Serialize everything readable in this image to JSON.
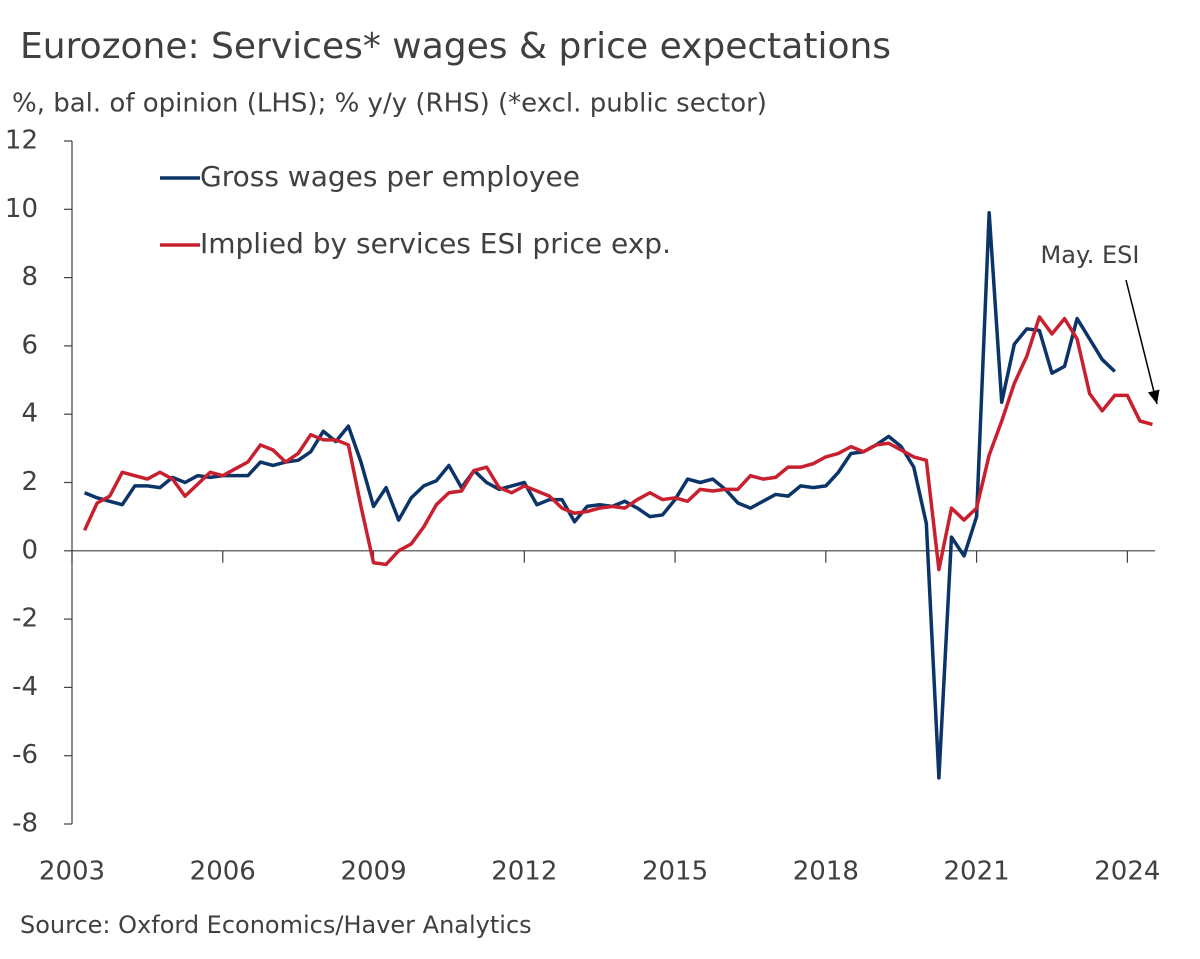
{
  "chart_data": {
    "type": "line",
    "title": "Eurozone: Services* wages & price expectations",
    "subtitle": "%, bal. of opinion (LHS); % y/y (RHS) (*excl. public sector)",
    "source": "Source: Oxford Economics/Haver Analytics",
    "annotation": "May. ESI",
    "xlim": [
      2003,
      2024.55
    ],
    "xticks": [
      2003,
      2006,
      2009,
      2012,
      2015,
      2018,
      2021,
      2024
    ],
    "ylim": [
      -8,
      12
    ],
    "yticks": [
      -8,
      -6,
      -4,
      -2,
      0,
      2,
      4,
      6,
      8,
      10,
      12
    ],
    "series": [
      {
        "name": "Gross wages per employee",
        "color": "#0b3469",
        "x": [
          2003.25,
          2003.5,
          2003.75,
          2004,
          2004.25,
          2004.5,
          2004.75,
          2005,
          2005.25,
          2005.5,
          2005.75,
          2006,
          2006.25,
          2006.5,
          2006.75,
          2007,
          2007.25,
          2007.5,
          2007.75,
          2008,
          2008.25,
          2008.5,
          2008.75,
          2009,
          2009.25,
          2009.5,
          2009.75,
          2010,
          2010.25,
          2010.5,
          2010.75,
          2011,
          2011.25,
          2011.5,
          2011.75,
          2012,
          2012.25,
          2012.5,
          2012.75,
          2013,
          2013.25,
          2013.5,
          2013.75,
          2014,
          2014.25,
          2014.5,
          2014.75,
          2015,
          2015.25,
          2015.5,
          2015.75,
          2016,
          2016.25,
          2016.5,
          2016.75,
          2017,
          2017.25,
          2017.5,
          2017.75,
          2018,
          2018.25,
          2018.5,
          2018.75,
          2019,
          2019.25,
          2019.5,
          2019.75,
          2020,
          2020.25,
          2020.5,
          2020.75,
          2021,
          2021.25,
          2021.5,
          2021.75,
          2022,
          2022.25,
          2022.5,
          2022.75,
          2023,
          2023.25,
          2023.5,
          2023.75
        ],
        "values": [
          1.7,
          1.55,
          1.45,
          1.35,
          1.9,
          1.9,
          1.85,
          2.15,
          2.0,
          2.2,
          2.15,
          2.2,
          2.2,
          2.2,
          2.6,
          2.5,
          2.6,
          2.65,
          2.9,
          3.5,
          3.2,
          3.65,
          2.6,
          1.3,
          1.85,
          0.9,
          1.55,
          1.9,
          2.05,
          2.5,
          1.85,
          2.35,
          2.0,
          1.8,
          1.9,
          2.0,
          1.35,
          1.5,
          1.5,
          0.85,
          1.3,
          1.35,
          1.3,
          1.45,
          1.25,
          1.0,
          1.05,
          1.5,
          2.1,
          2.0,
          2.1,
          1.8,
          1.4,
          1.25,
          1.45,
          1.65,
          1.6,
          1.9,
          1.85,
          1.9,
          2.3,
          2.85,
          2.9,
          3.1,
          3.35,
          3.05,
          2.45,
          0.8,
          -6.65,
          0.4,
          -0.15,
          1.0,
          9.9,
          4.35,
          6.05,
          6.5,
          6.45,
          5.2,
          5.4,
          6.8,
          6.2,
          5.6,
          5.25
        ]
      },
      {
        "name": "Implied by services ESI price exp.",
        "color": "#c8202f",
        "x": [
          2003.25,
          2003.5,
          2003.75,
          2004,
          2004.25,
          2004.5,
          2004.75,
          2005,
          2005.25,
          2005.5,
          2005.75,
          2006,
          2006.25,
          2006.5,
          2006.75,
          2007,
          2007.25,
          2007.5,
          2007.75,
          2008,
          2008.25,
          2008.5,
          2008.75,
          2009,
          2009.25,
          2009.5,
          2009.75,
          2010,
          2010.25,
          2010.5,
          2010.75,
          2011,
          2011.25,
          2011.5,
          2011.75,
          2012,
          2012.25,
          2012.5,
          2012.75,
          2013,
          2013.25,
          2013.5,
          2013.75,
          2014,
          2014.25,
          2014.5,
          2014.75,
          2015,
          2015.25,
          2015.5,
          2015.75,
          2016,
          2016.25,
          2016.5,
          2016.75,
          2017,
          2017.25,
          2017.5,
          2017.75,
          2018,
          2018.25,
          2018.5,
          2018.75,
          2019,
          2019.25,
          2019.5,
          2019.75,
          2020,
          2020.25,
          2020.5,
          2020.75,
          2021,
          2021.25,
          2021.5,
          2021.75,
          2022,
          2022.25,
          2022.5,
          2022.75,
          2023,
          2023.25,
          2023.5,
          2023.75,
          2024,
          2024.25,
          2024.5
        ],
        "values": [
          0.6,
          1.4,
          1.6,
          2.3,
          2.2,
          2.1,
          2.3,
          2.1,
          1.6,
          1.95,
          2.3,
          2.2,
          2.4,
          2.6,
          3.1,
          2.95,
          2.6,
          2.85,
          3.4,
          3.25,
          3.25,
          3.1,
          1.3,
          -0.35,
          -0.4,
          0.0,
          0.2,
          0.7,
          1.35,
          1.7,
          1.75,
          2.35,
          2.45,
          1.85,
          1.7,
          1.9,
          1.75,
          1.6,
          1.25,
          1.1,
          1.15,
          1.25,
          1.3,
          1.25,
          1.5,
          1.7,
          1.5,
          1.55,
          1.45,
          1.8,
          1.75,
          1.8,
          1.8,
          2.2,
          2.1,
          2.15,
          2.45,
          2.45,
          2.55,
          2.75,
          2.85,
          3.05,
          2.9,
          3.1,
          3.15,
          2.95,
          2.75,
          2.65,
          -0.55,
          1.25,
          0.9,
          1.25,
          2.8,
          3.8,
          4.9,
          5.7,
          6.85,
          6.35,
          6.8,
          6.2,
          4.6,
          4.1,
          4.55,
          4.55,
          3.8,
          3.7
        ]
      }
    ]
  }
}
